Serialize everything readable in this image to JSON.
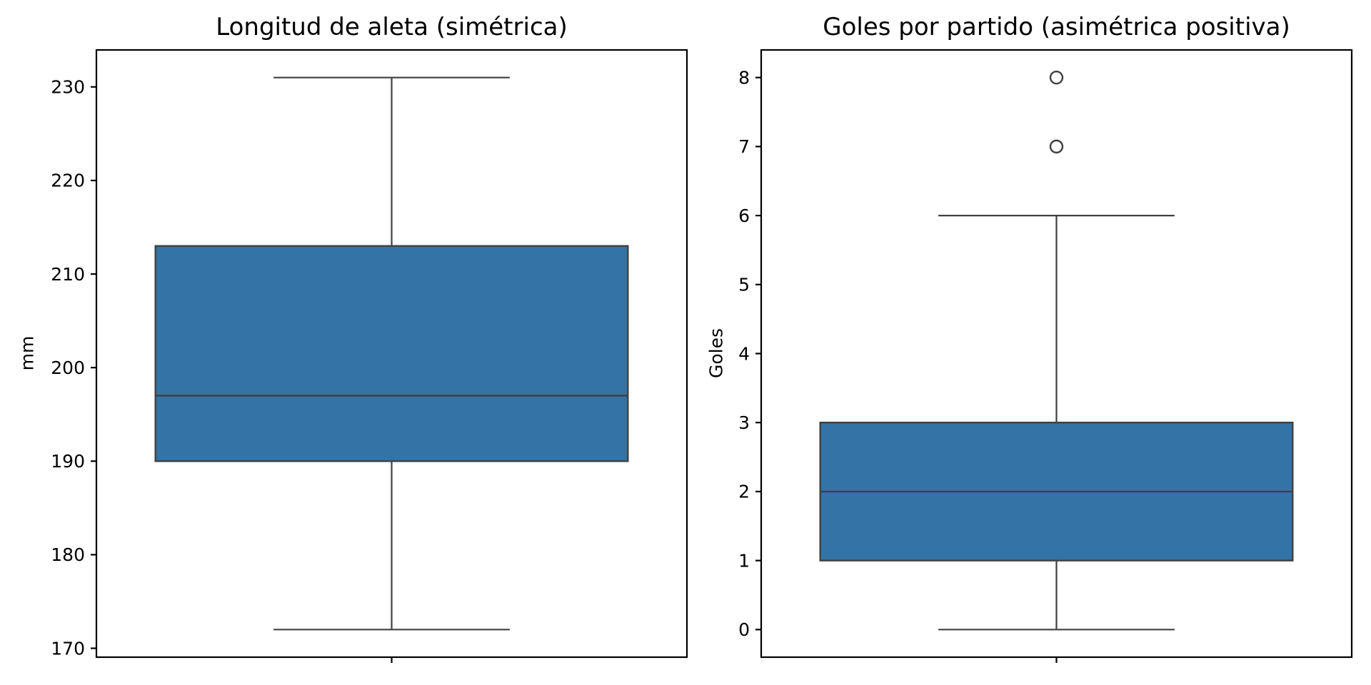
{
  "figure": {
    "background": "#ffffff"
  },
  "style": {
    "box_fill": "#3473a5",
    "element_line_color": "#404040",
    "spine_color": "#000000",
    "tick_color": "#000000",
    "text_color": "#000000"
  },
  "chart_data": [
    {
      "type": "box",
      "title": "Longitud de aleta (simétrica)",
      "ylabel": "mm",
      "xlabel": "",
      "ylim": [
        169.05,
        233.95
      ],
      "yticks": [
        170,
        180,
        190,
        200,
        210,
        220,
        230
      ],
      "grid": false,
      "legend": null,
      "box": {
        "whisker_low": 172,
        "q1": 190,
        "median": 197,
        "q3": 213,
        "whisker_high": 231,
        "outliers": []
      }
    },
    {
      "type": "box",
      "title": "Goles por partido (asimétrica positiva)",
      "ylabel": "Goles",
      "xlabel": "",
      "ylim": [
        -0.4,
        8.4
      ],
      "yticks": [
        0,
        1,
        2,
        3,
        4,
        5,
        6,
        7,
        8
      ],
      "grid": false,
      "legend": null,
      "box": {
        "whisker_low": 0,
        "q1": 1,
        "median": 2,
        "q3": 3,
        "whisker_high": 6,
        "outliers": [
          7,
          8
        ]
      }
    }
  ]
}
